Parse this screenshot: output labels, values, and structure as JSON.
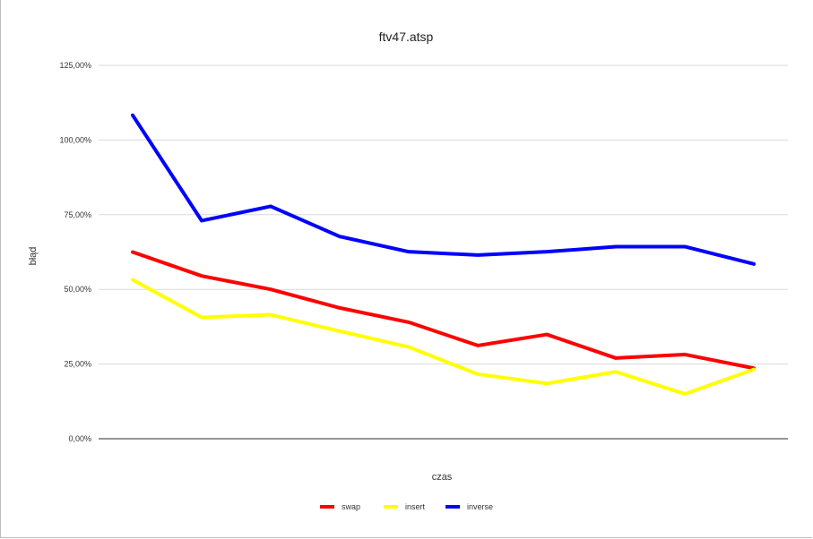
{
  "chart_data": {
    "type": "line",
    "title": "ftv47.atsp",
    "xlabel": "czas",
    "ylabel": "błąd",
    "ylim": [
      0,
      125
    ],
    "y_ticks": [
      0,
      25,
      50,
      75,
      100,
      125
    ],
    "y_tick_labels": [
      "0,00%",
      "25,00%",
      "50,00%",
      "75,00%",
      "100,00%",
      "125,00%"
    ],
    "x": [
      1,
      2,
      3,
      4,
      5,
      6,
      7,
      8,
      9,
      10
    ],
    "grid": true,
    "legend_position": "bottom",
    "series": [
      {
        "name": "swap",
        "color": "#ff0000",
        "values": [
          62.5,
          54.5,
          50.0,
          43.8,
          39.0,
          31.2,
          34.9,
          27.0,
          28.2,
          23.6
        ]
      },
      {
        "name": "insert",
        "color": "#ffff00",
        "values": [
          53.2,
          40.6,
          41.5,
          36.0,
          30.7,
          21.6,
          18.5,
          22.4,
          15.0,
          23.2
        ]
      },
      {
        "name": "inverse",
        "color": "#0000ff",
        "values": [
          108.3,
          73.0,
          77.8,
          67.7,
          62.6,
          61.5,
          62.6,
          64.3,
          64.3,
          58.5
        ]
      }
    ]
  }
}
